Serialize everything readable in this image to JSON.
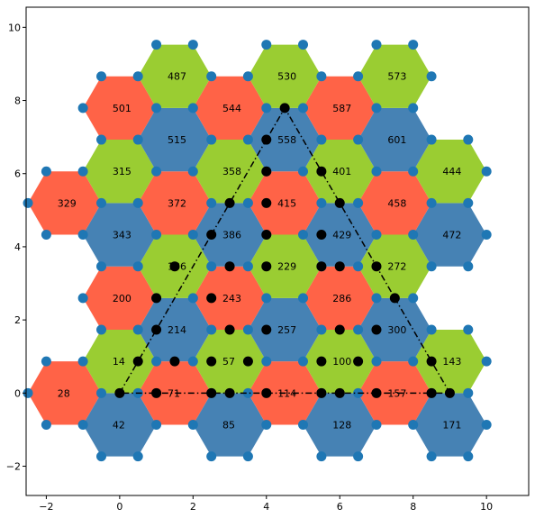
{
  "chart_data": {
    "type": "hexagonal-tiling",
    "xlim": [
      -2.55,
      11.15
    ],
    "ylim": [
      -2.8,
      10.55
    ],
    "x_ticks": [
      -2,
      0,
      2,
      4,
      6,
      8,
      10
    ],
    "y_ticks": [
      -2,
      0,
      2,
      4,
      6,
      8,
      10
    ],
    "hex_radius": 1.0,
    "colors": {
      "red": "#ff6347",
      "green": "#9acd32",
      "blue": "#4682b4",
      "vertex": "#1f77b4",
      "path": "#000000"
    },
    "hexagons": [
      {
        "label": "28",
        "x": -1.5,
        "y": 0.0,
        "color": "red"
      },
      {
        "label": "42",
        "x": 0.0,
        "y": -0.866,
        "color": "blue"
      },
      {
        "label": "71",
        "x": 1.5,
        "y": 0.0,
        "color": "red"
      },
      {
        "label": "85",
        "x": 3.0,
        "y": -0.866,
        "color": "blue"
      },
      {
        "label": "114",
        "x": 4.5,
        "y": 0.0,
        "color": "red"
      },
      {
        "label": "128",
        "x": 6.0,
        "y": -0.866,
        "color": "blue"
      },
      {
        "label": "157",
        "x": 7.5,
        "y": 0.0,
        "color": "red"
      },
      {
        "label": "171",
        "x": 9.0,
        "y": -0.866,
        "color": "blue"
      },
      {
        "label": "14",
        "x": 0.0,
        "y": 0.866,
        "color": "green"
      },
      {
        "label": "57",
        "x": 3.0,
        "y": 0.866,
        "color": "green"
      },
      {
        "label": "100",
        "x": 6.0,
        "y": 0.866,
        "color": "green"
      },
      {
        "label": "143",
        "x": 9.0,
        "y": 0.866,
        "color": "green"
      },
      {
        "label": "214",
        "x": 1.5,
        "y": 1.732,
        "color": "blue"
      },
      {
        "label": "257",
        "x": 4.5,
        "y": 1.732,
        "color": "blue"
      },
      {
        "label": "300",
        "x": 7.5,
        "y": 1.732,
        "color": "blue"
      },
      {
        "label": "200",
        "x": 0.0,
        "y": 2.598,
        "color": "red"
      },
      {
        "label": "243",
        "x": 3.0,
        "y": 2.598,
        "color": "red"
      },
      {
        "label": "286",
        "x": 6.0,
        "y": 2.598,
        "color": "red"
      },
      {
        "label": "186",
        "x": 1.5,
        "y": 3.464,
        "color": "green"
      },
      {
        "label": "229",
        "x": 4.5,
        "y": 3.464,
        "color": "green"
      },
      {
        "label": "272",
        "x": 7.5,
        "y": 3.464,
        "color": "green"
      },
      {
        "label": "343",
        "x": 0.0,
        "y": 4.33,
        "color": "blue"
      },
      {
        "label": "386",
        "x": 3.0,
        "y": 4.33,
        "color": "blue"
      },
      {
        "label": "429",
        "x": 6.0,
        "y": 4.33,
        "color": "blue"
      },
      {
        "label": "472",
        "x": 9.0,
        "y": 4.33,
        "color": "blue"
      },
      {
        "label": "329",
        "x": -1.5,
        "y": 5.196,
        "color": "red"
      },
      {
        "label": "372",
        "x": 1.5,
        "y": 5.196,
        "color": "red"
      },
      {
        "label": "415",
        "x": 4.5,
        "y": 5.196,
        "color": "red"
      },
      {
        "label": "458",
        "x": 7.5,
        "y": 5.196,
        "color": "red"
      },
      {
        "label": "315",
        "x": 0.0,
        "y": 6.062,
        "color": "green"
      },
      {
        "label": "358",
        "x": 3.0,
        "y": 6.062,
        "color": "green"
      },
      {
        "label": "401",
        "x": 6.0,
        "y": 6.062,
        "color": "green"
      },
      {
        "label": "444",
        "x": 9.0,
        "y": 6.062,
        "color": "green"
      },
      {
        "label": "515",
        "x": 1.5,
        "y": 6.928,
        "color": "blue"
      },
      {
        "label": "558",
        "x": 4.5,
        "y": 6.928,
        "color": "blue"
      },
      {
        "label": "601",
        "x": 7.5,
        "y": 6.928,
        "color": "blue"
      },
      {
        "label": "501",
        "x": 0.0,
        "y": 7.794,
        "color": "red"
      },
      {
        "label": "544",
        "x": 3.0,
        "y": 7.794,
        "color": "red"
      },
      {
        "label": "587",
        "x": 6.0,
        "y": 7.794,
        "color": "red"
      },
      {
        "label": "487",
        "x": 1.5,
        "y": 8.66,
        "color": "green"
      },
      {
        "label": "530",
        "x": 4.5,
        "y": 8.66,
        "color": "green"
      },
      {
        "label": "573",
        "x": 7.5,
        "y": 8.66,
        "color": "green"
      }
    ],
    "path_vertices": [
      [
        0,
        0
      ],
      [
        1,
        0
      ],
      [
        2.5,
        0
      ],
      [
        3,
        0
      ],
      [
        4,
        0
      ],
      [
        5.5,
        0
      ],
      [
        6,
        0
      ],
      [
        7,
        0
      ],
      [
        8.5,
        0
      ],
      [
        9,
        0
      ],
      [
        0.5,
        0.866
      ],
      [
        1.5,
        0.866
      ],
      [
        2.5,
        0.866
      ],
      [
        3.5,
        0.866
      ],
      [
        5.5,
        0.866
      ],
      [
        6.5,
        0.866
      ],
      [
        8.5,
        0.866
      ],
      [
        1,
        1.732
      ],
      [
        3,
        1.732
      ],
      [
        4,
        1.732
      ],
      [
        6,
        1.732
      ],
      [
        7,
        1.732
      ],
      [
        1,
        2.598
      ],
      [
        2.5,
        2.598
      ],
      [
        7.5,
        2.598
      ],
      [
        1.5,
        3.464
      ],
      [
        3,
        3.464
      ],
      [
        4,
        3.464
      ],
      [
        5.5,
        3.464
      ],
      [
        6,
        3.464
      ],
      [
        7,
        3.464
      ],
      [
        2.5,
        4.33
      ],
      [
        4,
        4.33
      ],
      [
        5.5,
        4.33
      ],
      [
        3,
        5.196
      ],
      [
        4,
        5.196
      ],
      [
        6,
        5.196
      ],
      [
        4,
        6.062
      ],
      [
        5.5,
        6.062
      ],
      [
        4,
        6.928
      ],
      [
        4.5,
        7.794
      ]
    ],
    "triangle": [
      [
        0,
        0
      ],
      [
        4.5,
        7.794
      ],
      [
        9,
        0
      ]
    ]
  }
}
